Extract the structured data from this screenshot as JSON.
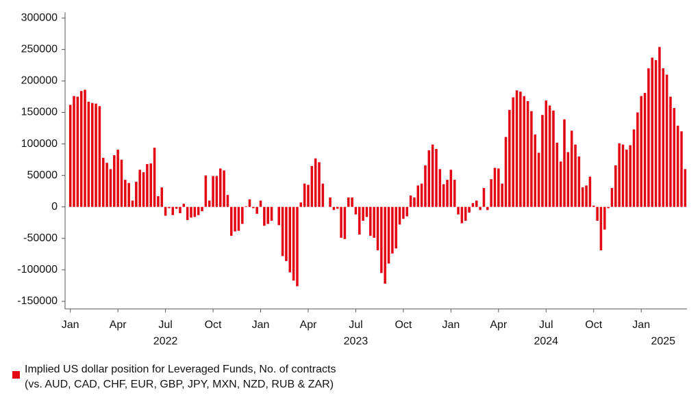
{
  "chart_data": {
    "type": "bar",
    "series": [
      {
        "name": "Implied US dollar position for Leveraged Funds, No. of contracts",
        "color": "#e30613",
        "values": [
          162000,
          176000,
          175000,
          184000,
          186000,
          167000,
          165000,
          164000,
          160000,
          78000,
          70000,
          60000,
          82000,
          91000,
          75000,
          43000,
          38000,
          10000,
          40000,
          59000,
          55000,
          68000,
          69000,
          94000,
          17000,
          31000,
          -14000,
          -2000,
          -13000,
          -3000,
          -10000,
          5000,
          -21000,
          -17000,
          -16000,
          -13000,
          -7000,
          50000,
          10000,
          49000,
          49000,
          61000,
          58000,
          19000,
          -46000,
          -39000,
          -38000,
          -27000,
          1000,
          12000,
          -2000,
          -11000,
          10000,
          -30000,
          -27000,
          -22000,
          0,
          -29000,
          -78000,
          -86000,
          -104000,
          -117000,
          -126000,
          7000,
          37000,
          35000,
          65000,
          77000,
          71000,
          37000,
          0,
          15000,
          -5000,
          -3000,
          -49000,
          -51000,
          15000,
          15000,
          -12000,
          -44000,
          -22000,
          -16000,
          -46000,
          -49000,
          -69000,
          -105000,
          -122000,
          -90000,
          -74000,
          -66000,
          -28000,
          -19000,
          -15000,
          18000,
          15000,
          34000,
          37000,
          66000,
          90000,
          99000,
          92000,
          60000,
          36000,
          43000,
          59000,
          43000,
          -12000,
          -26000,
          -22000,
          -9000,
          6000,
          10000,
          -5000,
          30000,
          -5000,
          44000,
          62000,
          61000,
          37000,
          111000,
          154000,
          174000,
          185000,
          183000,
          176000,
          168000,
          152000,
          115000,
          86000,
          146000,
          169000,
          161000,
          153000,
          102000,
          72000,
          139000,
          87000,
          121000,
          99000,
          80000,
          31000,
          34000,
          48000,
          2000,
          -22000,
          -69000,
          -36000,
          -2000,
          30000,
          66000,
          101000,
          99000,
          91000,
          98000,
          123000,
          150000,
          176000,
          181000,
          220000,
          237000,
          233000,
          254000,
          220000,
          210000,
          175000,
          157000,
          129000,
          120000,
          60000
        ]
      }
    ],
    "legend_note": "(vs. AUD, CAD, CHF, EUR, GBP, JPY, MXN, NZD, RUB & ZAR)",
    "categories": [
      "Jan",
      null,
      null,
      null,
      null,
      null,
      null,
      null,
      null,
      null,
      null,
      null,
      null,
      "Apr",
      null,
      null,
      null,
      null,
      null,
      null,
      null,
      null,
      null,
      null,
      null,
      null,
      "Jul",
      null,
      null,
      null,
      null,
      null,
      null,
      null,
      null,
      null,
      null,
      null,
      null,
      "Oct",
      null,
      null,
      null,
      null,
      null,
      null,
      null,
      null,
      null,
      null,
      null,
      null,
      "Jan",
      null,
      null,
      null,
      null,
      null,
      null,
      null,
      null,
      null,
      null,
      null,
      null,
      "Apr",
      null,
      null,
      null,
      null,
      null,
      null,
      null,
      null,
      null,
      null,
      null,
      null,
      "Jul",
      null,
      null,
      null,
      null,
      null,
      null,
      null,
      null,
      null,
      null,
      null,
      null,
      "Oct",
      null,
      null,
      null,
      null,
      null,
      null,
      null,
      null,
      null,
      null,
      null,
      null,
      "Jan",
      null,
      null,
      null,
      null,
      null,
      null,
      null,
      null,
      null,
      null,
      null,
      null,
      "Apr",
      null,
      null,
      null,
      null,
      null,
      null,
      null,
      null,
      null,
      null,
      null,
      null,
      "Jul",
      null,
      null,
      null,
      null,
      null,
      null,
      null,
      null,
      null,
      null,
      null,
      null,
      "Oct",
      null,
      null,
      null,
      null,
      null,
      null,
      null,
      null,
      null,
      null,
      null,
      null,
      "Jan",
      null,
      null,
      null,
      null,
      null,
      null,
      null,
      null,
      null,
      null,
      null,
      null
    ],
    "category_years": [
      null,
      null,
      null,
      null,
      null,
      null,
      null,
      null,
      null,
      null,
      null,
      null,
      null,
      null,
      null,
      null,
      null,
      null,
      null,
      null,
      null,
      null,
      null,
      null,
      null,
      null,
      "2022",
      null,
      null,
      null,
      null,
      null,
      null,
      null,
      null,
      null,
      null,
      null,
      null,
      null,
      null,
      null,
      null,
      null,
      null,
      null,
      null,
      null,
      null,
      null,
      null,
      null,
      null,
      null,
      null,
      null,
      null,
      null,
      null,
      null,
      null,
      null,
      null,
      null,
      null,
      null,
      null,
      null,
      null,
      null,
      null,
      null,
      null,
      null,
      null,
      null,
      null,
      null,
      "2023",
      null,
      null,
      null,
      null,
      null,
      null,
      null,
      null,
      null,
      null,
      null,
      null,
      null,
      null,
      null,
      null,
      null,
      null,
      null,
      null,
      null,
      null,
      null,
      null,
      null,
      null,
      null,
      null,
      null,
      null,
      null,
      null,
      null,
      null,
      null,
      null,
      null,
      null,
      null,
      null,
      null,
      null,
      null,
      null,
      null,
      null,
      null,
      null,
      null,
      null,
      null,
      "2024",
      null,
      null,
      null,
      null,
      null,
      null,
      null,
      null,
      null,
      null,
      null,
      null,
      null,
      null,
      null,
      null,
      null,
      null,
      null,
      null,
      null,
      null,
      null,
      null,
      null,
      null,
      null,
      null,
      null,
      null,
      null,
      "2025",
      null,
      null,
      null,
      null,
      null,
      null
    ],
    "ylim": [
      -162000,
      309000
    ],
    "yticks": [
      -150000,
      -100000,
      -50000,
      0,
      50000,
      100000,
      150000,
      200000,
      250000,
      300000
    ],
    "grid": false
  }
}
